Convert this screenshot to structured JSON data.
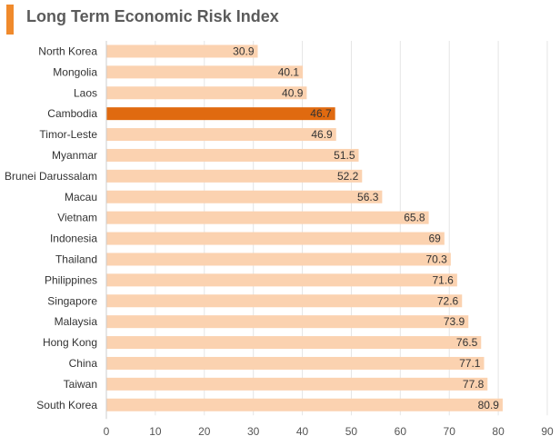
{
  "title": "Long Term Economic Risk Index",
  "colors": {
    "accent": "#f08a2c",
    "bar": "#fbd2b0",
    "highlight": "#e06a10",
    "grid": "#e5e5e5",
    "axis": "#cccccc"
  },
  "chart_data": {
    "type": "bar",
    "orientation": "horizontal",
    "title": "Long Term Economic Risk Index",
    "categories": [
      "North Korea",
      "Mongolia",
      "Laos",
      "Cambodia",
      "Timor-Leste",
      "Myanmar",
      "Brunei Darussalam",
      "Macau",
      "Vietnam",
      "Indonesia",
      "Thailand",
      "Philippines",
      "Singapore",
      "Malaysia",
      "Hong Kong",
      "China",
      "Taiwan",
      "South Korea"
    ],
    "values": [
      30.9,
      40.1,
      40.9,
      46.7,
      46.9,
      51.5,
      52.2,
      56.3,
      65.8,
      69,
      70.3,
      71.6,
      72.6,
      73.9,
      76.5,
      77.1,
      77.8,
      80.9
    ],
    "highlight": "Cambodia",
    "xlim": [
      0,
      90
    ],
    "xticks": [
      0,
      10,
      20,
      30,
      40,
      50,
      60,
      70,
      80,
      90
    ],
    "grid": true,
    "legend": "none"
  }
}
